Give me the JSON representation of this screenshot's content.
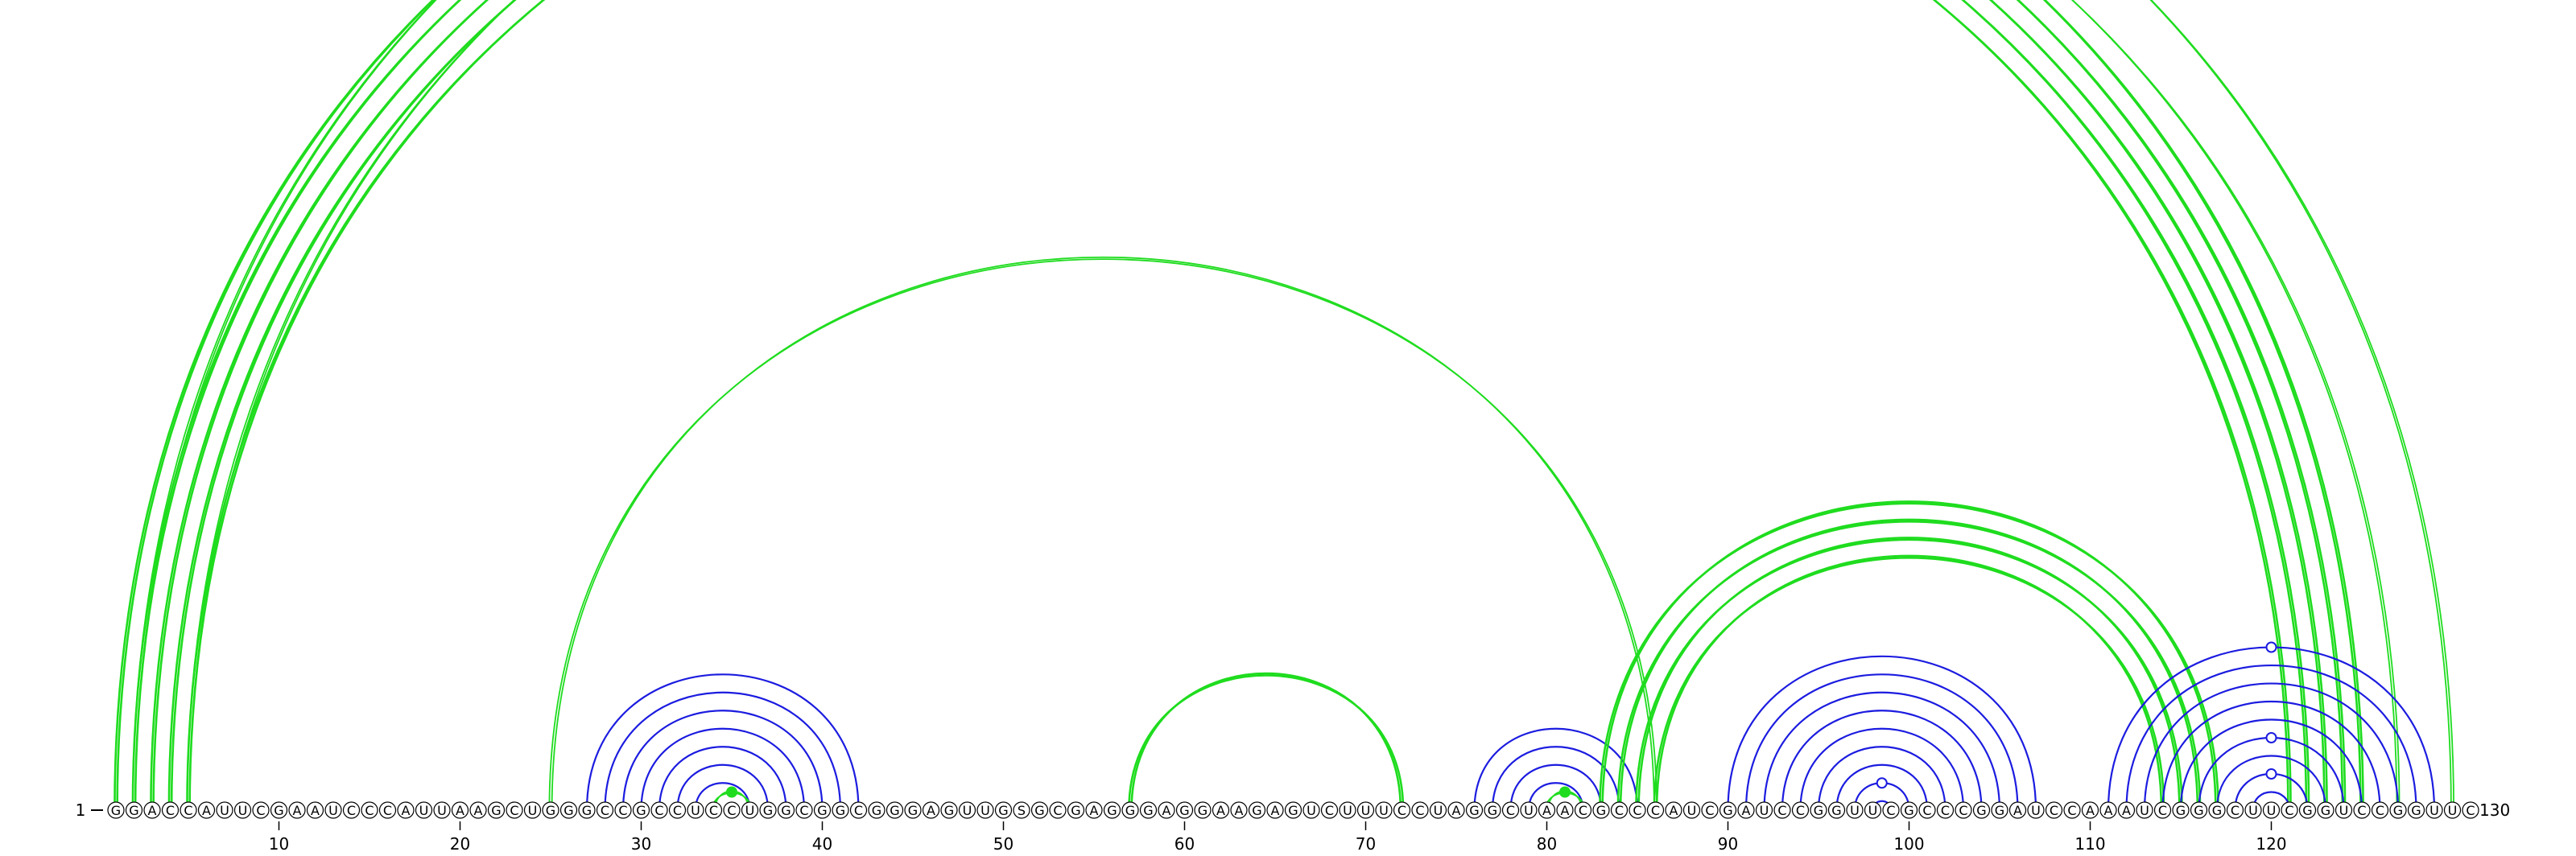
{
  "sequence": "GGACCAUUCGAAUCCCAUUAAGCUGGGCCGCCUCCUGGCGGCGGGAGUUGSGCGAGGGAGGAAGAGUCUUUCCUAGGCUAACGCCCAUCGAUCCGGUUCGCCCGGAUCCAAAUCGGGCUUCGGUCCGGUUC",
  "start_label": "1",
  "end_label": "130",
  "ticks": [
    "10",
    "20",
    "30",
    "40",
    "50",
    "60",
    "70",
    "80",
    "90",
    "100",
    "110",
    "120"
  ],
  "colors": {
    "green": "#1fdc1f",
    "blue": "#1c1ce0",
    "text": "#000000"
  },
  "arc_groups": [
    {
      "name": "outer-green-helix",
      "color": "green",
      "thick": true,
      "pairs": [
        [
          1,
          125
        ],
        [
          2,
          124
        ],
        [
          3,
          123
        ],
        [
          4,
          122
        ],
        [
          5,
          121
        ]
      ]
    },
    {
      "name": "outer-green-thin",
      "color": "green",
      "thick": false,
      "pairs": [
        [
          2,
          130
        ],
        [
          5,
          127
        ]
      ]
    },
    {
      "name": "long-range-green",
      "color": "green",
      "thick": false,
      "pairs": [
        [
          25,
          86
        ]
      ]
    },
    {
      "name": "blue-hairpin-1",
      "color": "blue",
      "thick": false,
      "pairs": [
        [
          27,
          42
        ],
        [
          28,
          41
        ],
        [
          29,
          40
        ],
        [
          30,
          39
        ],
        [
          31,
          38
        ],
        [
          32,
          37
        ],
        [
          33,
          36
        ]
      ]
    },
    {
      "name": "green-hairpin-1",
      "color": "green",
      "thick": false,
      "pairs": [
        [
          34,
          36
        ]
      ]
    },
    {
      "name": "green-hairpin-2",
      "color": "green",
      "thick": true,
      "pairs": [
        [
          57,
          72
        ]
      ]
    },
    {
      "name": "blue-hairpin-2",
      "color": "blue",
      "thick": false,
      "pairs": [
        [
          76,
          85
        ],
        [
          77,
          84
        ],
        [
          78,
          83
        ],
        [
          79,
          82
        ]
      ]
    },
    {
      "name": "green-hairpin-3",
      "color": "green",
      "thick": false,
      "pairs": [
        [
          80,
          82
        ]
      ]
    },
    {
      "name": "green-kissing",
      "color": "green",
      "thick": true,
      "pairs": [
        [
          83,
          117
        ],
        [
          84,
          116
        ],
        [
          85,
          115
        ],
        [
          86,
          114
        ]
      ]
    },
    {
      "name": "blue-hairpin-3",
      "color": "blue",
      "thick": false,
      "pairs": [
        [
          90,
          107
        ],
        [
          91,
          106
        ],
        [
          92,
          105
        ],
        [
          93,
          104
        ],
        [
          94,
          103
        ],
        [
          95,
          102
        ],
        [
          96,
          101
        ],
        [
          97,
          100
        ],
        [
          98,
          99
        ]
      ]
    },
    {
      "name": "blue-hairpin-4",
      "color": "blue",
      "thick": false,
      "pairs": [
        [
          111,
          129
        ],
        [
          112,
          128
        ],
        [
          113,
          127
        ],
        [
          114,
          126
        ],
        [
          115,
          125
        ],
        [
          116,
          124
        ],
        [
          117,
          123
        ],
        [
          118,
          122
        ],
        [
          119,
          121
        ]
      ]
    }
  ],
  "markers": [
    {
      "color": "green",
      "filled": false,
      "pos": 66,
      "height_pair": [
        2,
        130
      ]
    },
    {
      "color": "green",
      "filled": true,
      "pos": 35,
      "height_pair": [
        34,
        36
      ]
    },
    {
      "color": "green",
      "filled": true,
      "pos": 81,
      "height_pair": [
        80,
        82
      ]
    },
    {
      "color": "blue",
      "filled": false,
      "pos": 98.5,
      "height_pair": [
        97,
        100
      ]
    },
    {
      "color": "blue",
      "filled": false,
      "pos": 120,
      "height_pair": [
        111,
        129
      ]
    },
    {
      "color": "blue",
      "filled": false,
      "pos": 120,
      "height_pair": [
        116,
        124
      ]
    },
    {
      "color": "blue",
      "filled": false,
      "pos": 120,
      "height_pair": [
        118,
        122
      ]
    }
  ]
}
